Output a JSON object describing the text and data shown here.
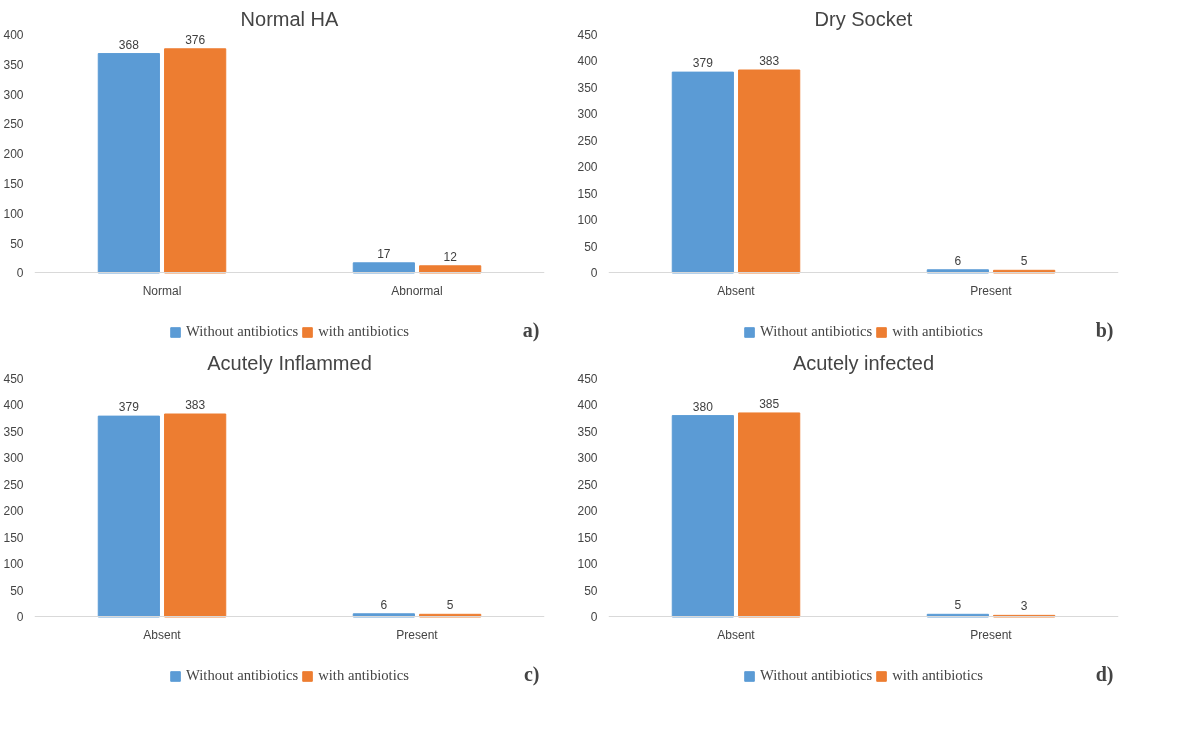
{
  "chart_data": [
    {
      "type": "bar",
      "title": "Normal HA",
      "categories": [
        "Normal",
        "Abnormal"
      ],
      "series": [
        {
          "name": "Without antibiotics",
          "color": "#5b9bd5",
          "values": [
            368,
            17
          ]
        },
        {
          "name": "with antibiotics",
          "color": "#ed7d31",
          "values": [
            376,
            12
          ]
        }
      ],
      "ylim": [
        0,
        400
      ],
      "yticks": [
        0,
        50,
        100,
        150,
        200,
        250,
        300,
        350,
        400
      ],
      "grid": false,
      "legend": "bottom",
      "data_labels": true,
      "annotations": [
        "a)"
      ]
    },
    {
      "type": "bar",
      "title": "Dry Socket",
      "categories": [
        "Absent",
        "Present"
      ],
      "series": [
        {
          "name": "Without antibiotics",
          "color": "#5b9bd5",
          "values": [
            379,
            6
          ]
        },
        {
          "name": "with antibiotics",
          "color": "#ed7d31",
          "values": [
            383,
            5
          ]
        }
      ],
      "ylim": [
        0,
        450
      ],
      "yticks": [
        0,
        50,
        100,
        150,
        200,
        250,
        300,
        350,
        400,
        450
      ],
      "grid": false,
      "legend": "bottom",
      "data_labels": true,
      "annotations": [
        "b)"
      ]
    },
    {
      "type": "bar",
      "title": "Acutely Inflammed",
      "categories": [
        "Absent",
        "Present"
      ],
      "series": [
        {
          "name": "Without antibiotics",
          "color": "#5b9bd5",
          "values": [
            379,
            6
          ]
        },
        {
          "name": "with antibiotics",
          "color": "#ed7d31",
          "values": [
            383,
            5
          ]
        }
      ],
      "ylim": [
        0,
        450
      ],
      "yticks": [
        0,
        50,
        100,
        150,
        200,
        250,
        300,
        350,
        400,
        450
      ],
      "grid": false,
      "legend": "bottom",
      "data_labels": true,
      "annotations": [
        "c)"
      ]
    },
    {
      "type": "bar",
      "title": "Acutely infected",
      "categories": [
        "Absent",
        "Present"
      ],
      "series": [
        {
          "name": "Without antibiotics",
          "color": "#5b9bd5",
          "values": [
            380,
            5
          ]
        },
        {
          "name": "with antibiotics",
          "color": "#ed7d31",
          "values": [
            385,
            3
          ]
        }
      ],
      "ylim": [
        0,
        450
      ],
      "yticks": [
        0,
        50,
        100,
        150,
        200,
        250,
        300,
        350,
        400,
        450
      ],
      "grid": false,
      "legend": "bottom",
      "data_labels": true,
      "annotations": [
        "d)"
      ]
    }
  ]
}
